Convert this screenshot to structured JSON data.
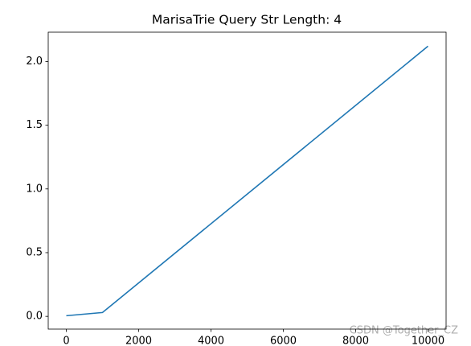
{
  "chart_data": {
    "type": "line",
    "title": "MarisaTrie Query Str Length: 4",
    "x": [
      0,
      1000,
      10000
    ],
    "series": [
      {
        "color": "#1f77b4",
        "values": [
          0.005,
          0.03,
          2.12
        ]
      }
    ],
    "xlim": [
      -500,
      10500
    ],
    "xticks": [
      0,
      2000,
      4000,
      6000,
      8000,
      10000
    ],
    "ylim": [
      -0.1,
      2.23
    ],
    "yticks": [
      {
        "value": 0,
        "label": "0.0"
      },
      0.5,
      {
        "value": 1,
        "label": "1.0"
      },
      1.5,
      {
        "value": 2,
        "label": "2.0"
      }
    ],
    "grid": false,
    "watermark": "CSDN @Together_CZ"
  }
}
